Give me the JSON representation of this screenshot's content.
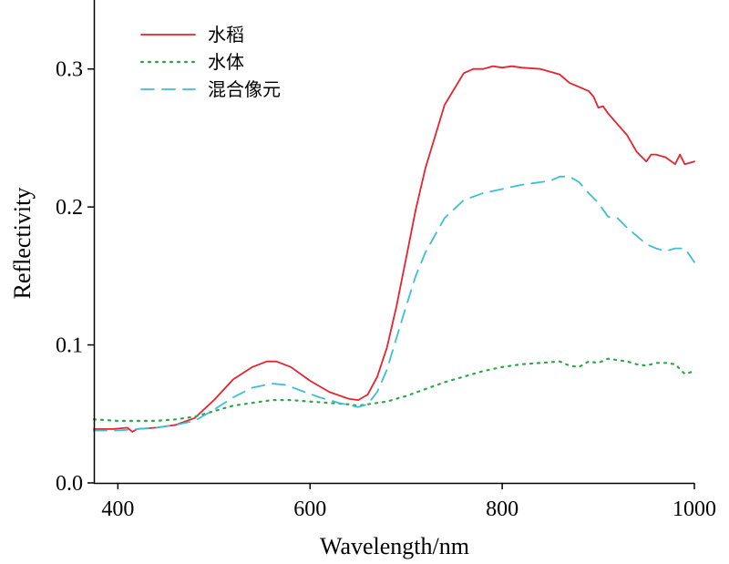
{
  "chart_data": {
    "type": "line",
    "xlabel": "Wavelength/nm",
    "ylabel": "Reflectivity",
    "xlim": [
      375,
      1000
    ],
    "ylim": [
      0,
      0.35
    ],
    "xticks": [
      400,
      600,
      800,
      1000
    ],
    "xtick_labels": [
      "400",
      "600",
      "800",
      "1000"
    ],
    "yticks": [
      0.0,
      0.1,
      0.2,
      0.3
    ],
    "ytick_labels": [
      "0.0",
      "0.1",
      "0.2",
      "0.3"
    ],
    "grid": false,
    "legend_position": "top-left",
    "series": [
      {
        "name": "水稻",
        "style": "solid",
        "color": "#e8222f",
        "x": [
          375,
          395,
          410,
          415,
          420,
          440,
          460,
          480,
          500,
          520,
          540,
          555,
          565,
          580,
          600,
          620,
          640,
          650,
          660,
          670,
          680,
          690,
          700,
          710,
          720,
          740,
          760,
          770,
          780,
          790,
          800,
          810,
          820,
          840,
          850,
          860,
          870,
          880,
          890,
          895,
          900,
          905,
          910,
          920,
          930,
          940,
          950,
          955,
          960,
          970,
          980,
          985,
          990,
          1000
        ],
        "y": [
          0.039,
          0.039,
          0.04,
          0.037,
          0.039,
          0.04,
          0.042,
          0.047,
          0.06,
          0.075,
          0.084,
          0.088,
          0.088,
          0.084,
          0.074,
          0.066,
          0.061,
          0.06,
          0.064,
          0.077,
          0.098,
          0.128,
          0.163,
          0.198,
          0.228,
          0.274,
          0.297,
          0.3,
          0.3,
          0.302,
          0.301,
          0.302,
          0.301,
          0.3,
          0.298,
          0.296,
          0.29,
          0.287,
          0.284,
          0.28,
          0.272,
          0.273,
          0.268,
          0.26,
          0.252,
          0.24,
          0.233,
          0.238,
          0.238,
          0.236,
          0.231,
          0.238,
          0.231,
          0.233
        ]
      },
      {
        "name": "水体",
        "style": "dotted",
        "color": "#2ca84a",
        "x": [
          375,
          400,
          420,
          440,
          460,
          480,
          500,
          520,
          540,
          560,
          580,
          600,
          620,
          640,
          650,
          660,
          680,
          700,
          720,
          740,
          760,
          780,
          800,
          820,
          840,
          860,
          870,
          880,
          890,
          900,
          910,
          920,
          930,
          940,
          950,
          960,
          970,
          980,
          990,
          1000
        ],
        "y": [
          0.046,
          0.045,
          0.045,
          0.045,
          0.046,
          0.048,
          0.052,
          0.056,
          0.058,
          0.06,
          0.06,
          0.059,
          0.058,
          0.057,
          0.056,
          0.057,
          0.059,
          0.063,
          0.068,
          0.073,
          0.077,
          0.081,
          0.084,
          0.086,
          0.087,
          0.088,
          0.085,
          0.084,
          0.088,
          0.087,
          0.09,
          0.089,
          0.088,
          0.086,
          0.085,
          0.087,
          0.087,
          0.086,
          0.079,
          0.081
        ]
      },
      {
        "name": "混合像元",
        "style": "dashed",
        "color": "#3cbfd4",
        "x": [
          375,
          400,
          420,
          440,
          460,
          480,
          500,
          520,
          540,
          560,
          575,
          590,
          610,
          630,
          650,
          660,
          670,
          680,
          690,
          700,
          710,
          720,
          740,
          760,
          780,
          800,
          820,
          840,
          850,
          860,
          870,
          880,
          890,
          900,
          910,
          920,
          930,
          940,
          950,
          960,
          970,
          980,
          990,
          1000
        ],
        "y": [
          0.038,
          0.038,
          0.039,
          0.04,
          0.042,
          0.045,
          0.053,
          0.062,
          0.069,
          0.072,
          0.071,
          0.067,
          0.062,
          0.058,
          0.055,
          0.057,
          0.066,
          0.082,
          0.105,
          0.128,
          0.15,
          0.167,
          0.192,
          0.205,
          0.21,
          0.213,
          0.216,
          0.218,
          0.219,
          0.222,
          0.222,
          0.218,
          0.21,
          0.203,
          0.193,
          0.192,
          0.185,
          0.179,
          0.173,
          0.17,
          0.168,
          0.17,
          0.17,
          0.16
        ]
      }
    ]
  }
}
